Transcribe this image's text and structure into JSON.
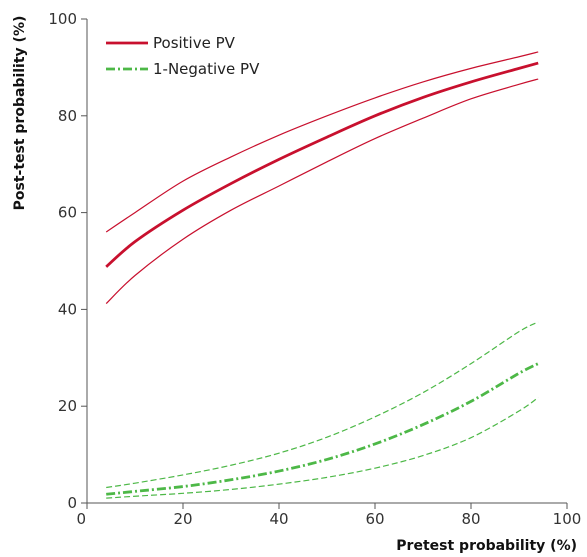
{
  "chart_data": {
    "type": "line",
    "title": "",
    "xlabel": "Pretest probability (%)",
    "ylabel": "Post-test probability (%)",
    "xlim": [
      0,
      100
    ],
    "ylim": [
      0,
      100
    ],
    "xticks": [
      0,
      20,
      40,
      60,
      80,
      100
    ],
    "yticks": [
      0,
      20,
      40,
      60,
      80,
      100
    ],
    "grid": false,
    "legend_position": "top-left",
    "x": [
      4,
      10,
      20,
      30,
      40,
      50,
      60,
      70,
      80,
      90,
      94
    ],
    "series": [
      {
        "name": "Positive PV",
        "role": "estimate",
        "color": "#c8102e",
        "style": "solid",
        "values": [
          48.8,
          54.0,
          60.5,
          66.0,
          71.0,
          75.6,
          80.0,
          83.8,
          87.0,
          89.8,
          90.9
        ]
      },
      {
        "name": "",
        "role": "upper-ci",
        "color": "#c8102e",
        "style": "solid",
        "values": [
          56.0,
          60.0,
          66.5,
          71.5,
          76.0,
          80.0,
          83.7,
          87.0,
          89.8,
          92.2,
          93.2
        ]
      },
      {
        "name": "",
        "role": "lower-ci",
        "color": "#c8102e",
        "style": "solid",
        "values": [
          41.2,
          47.0,
          54.5,
          60.5,
          65.5,
          70.5,
          75.3,
          79.5,
          83.5,
          86.5,
          87.6
        ]
      },
      {
        "name": "1-Negative PV",
        "role": "estimate",
        "color": "#4db847",
        "style": "dashdot",
        "values": [
          1.8,
          2.4,
          3.4,
          4.8,
          6.6,
          9.0,
          12.2,
          16.2,
          21.0,
          26.8,
          28.8
        ]
      },
      {
        "name": "",
        "role": "upper-ci",
        "color": "#4db847",
        "style": "dashed",
        "values": [
          3.2,
          4.1,
          5.8,
          7.8,
          10.3,
          13.6,
          17.8,
          22.8,
          28.8,
          35.4,
          37.4
        ]
      },
      {
        "name": "",
        "role": "lower-ci",
        "color": "#4db847",
        "style": "dashed",
        "values": [
          1.0,
          1.4,
          2.0,
          2.8,
          3.9,
          5.3,
          7.2,
          9.8,
          13.5,
          19.0,
          21.8
        ]
      }
    ]
  }
}
